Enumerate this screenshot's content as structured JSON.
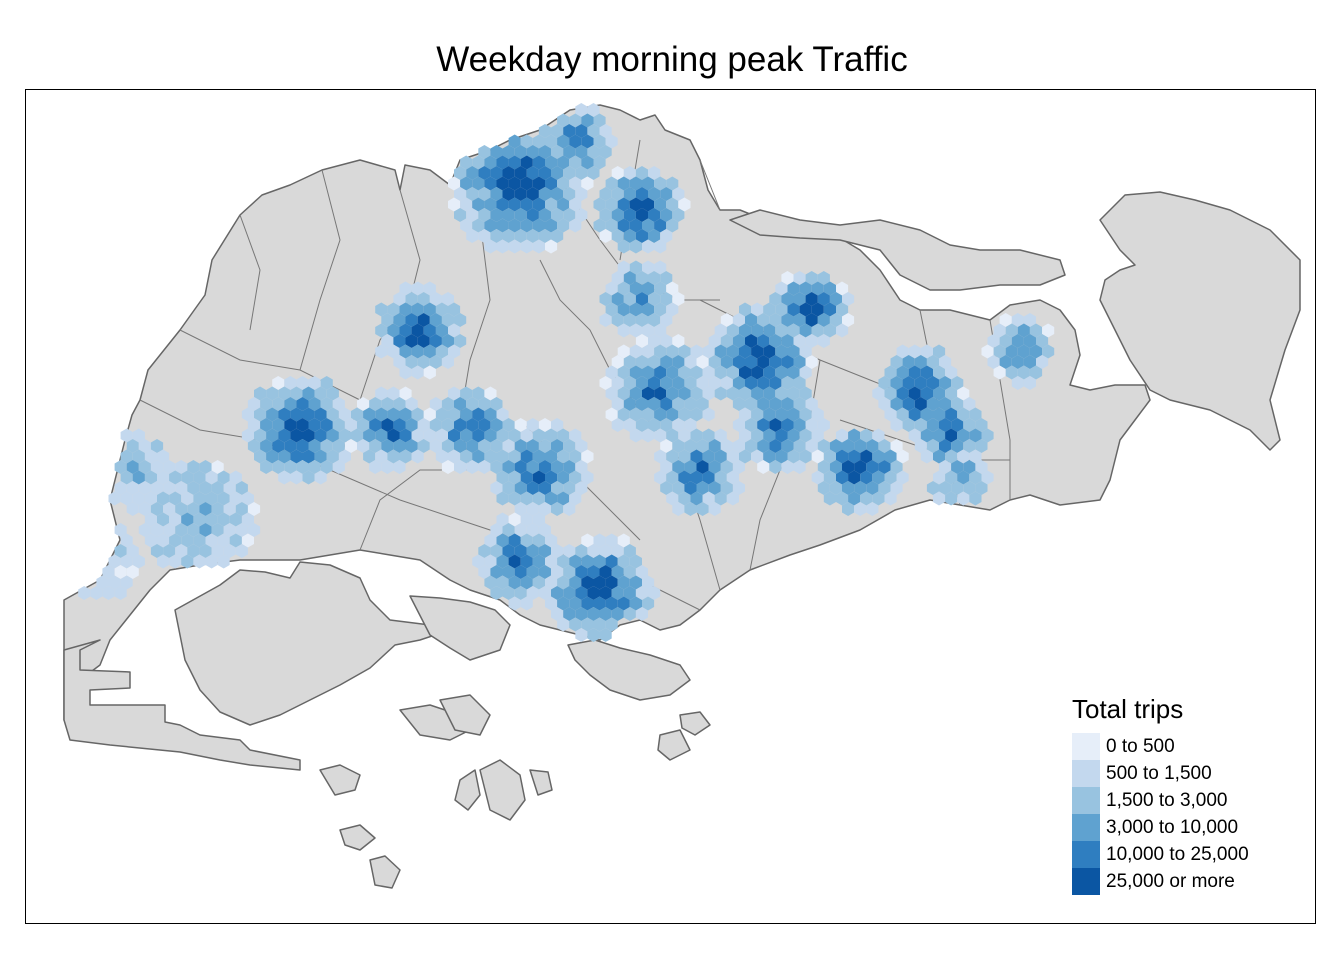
{
  "title": "Weekday morning peak Traffic",
  "legend": {
    "title": "Total trips",
    "items": [
      {
        "label": "0 to 500",
        "color": "#e6eef9"
      },
      {
        "label": "500 to 1,500",
        "color": "#c3d8ee"
      },
      {
        "label": "1,500 to 3,000",
        "color": "#98c3e0"
      },
      {
        "label": "3,000 to 10,000",
        "color": "#5fa2d0"
      },
      {
        "label": "10,000 to 25,000",
        "color": "#2f7ec0"
      },
      {
        "label": "25,000 or more",
        "color": "#0b56a3"
      }
    ]
  },
  "colors": {
    "land": "#d9d9d9",
    "border": "#666666",
    "frame": "#000000"
  }
}
